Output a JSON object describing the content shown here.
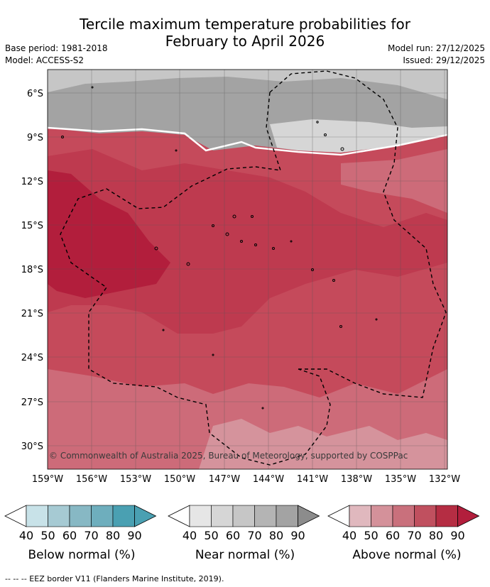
{
  "title_line1": "Tercile maximum temperature probabilities for",
  "title_line2": "February to April 2026",
  "base_period": "Base period: 1981-2018",
  "model": "Model: ACCESS-S2",
  "model_run": "Model run: 27/12/2025",
  "issued": "Issued: 29/12/2025",
  "lat_labels": [
    "6°S",
    "9°S",
    "12°S",
    "15°S",
    "18°S",
    "21°S",
    "24°S",
    "27°S",
    "30°S"
  ],
  "lon_labels": [
    "159°W",
    "156°W",
    "153°W",
    "150°W",
    "147°W",
    "144°W",
    "141°W",
    "138°W",
    "135°W",
    "132°W"
  ],
  "copyright": "© Commonwealth of Australia 2025, Bureau of Meteorology, supported by COSPPac",
  "colorbars": [
    {
      "label": "Below normal (%)",
      "ticks": [
        "40",
        "50",
        "60",
        "70",
        "80",
        "90"
      ],
      "colors": [
        "#ffffff",
        "#c8e2e8",
        "#a6cad3",
        "#87b8c4",
        "#6eaebd",
        "#4aa0b2"
      ]
    },
    {
      "label": "Near normal (%)",
      "ticks": [
        "40",
        "50",
        "60",
        "70",
        "80",
        "90"
      ],
      "colors": [
        "#ffffff",
        "#e6e6e6",
        "#d6d6d6",
        "#c6c6c6",
        "#b4b4b4",
        "#a3a3a3"
      ]
    },
    {
      "label": "Above normal (%)",
      "ticks": [
        "40",
        "50",
        "60",
        "70",
        "80",
        "90"
      ],
      "colors": [
        "#ffffff",
        "#e0b8be",
        "#d4919a",
        "#c9707c",
        "#c0505f",
        "#b52d43"
      ]
    }
  ],
  "footer": "-- -- -- EEZ border V11 (Flanders Marine Institute, 2019).",
  "map_colors": {
    "near_dark": "#a3a3a3",
    "near_mid": "#c6c6c6",
    "near_light": "#d6d6d6",
    "above_90": "#b21e3c",
    "above_80": "#be3a50",
    "above_70": "#c45564",
    "above_60": "#cd6b79",
    "above_50": "#d5939c"
  }
}
